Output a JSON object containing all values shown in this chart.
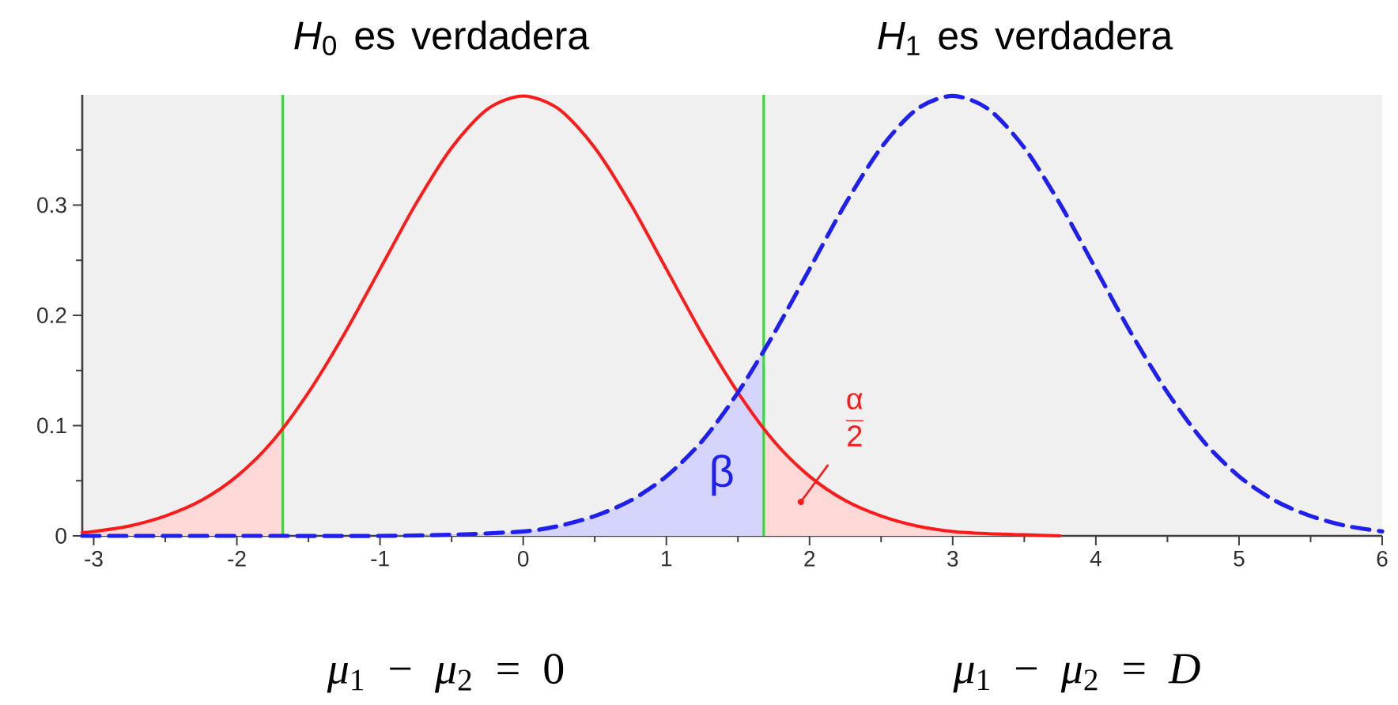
{
  "chart_data": {
    "type": "line",
    "xlim": [
      -3.08,
      6
    ],
    "ylim": [
      0,
      0.4
    ],
    "xticks": [
      -3,
      {
        "value": -2.5,
        "label": null
      },
      -2,
      {
        "value": -1.5,
        "label": null
      },
      -1,
      {
        "value": -0.5,
        "label": null
      },
      0,
      {
        "value": 0.5,
        "label": null
      },
      1,
      {
        "value": 1.5,
        "label": null
      },
      2,
      {
        "value": 2.5,
        "label": null
      },
      3,
      {
        "value": 3.5,
        "label": null
      },
      4,
      {
        "value": 4.5,
        "label": null
      },
      5,
      {
        "value": 5.5,
        "label": null
      },
      6
    ],
    "yticks": [
      0,
      {
        "value": 0.05,
        "label": null
      },
      0.1,
      {
        "value": 0.15,
        "label": null
      },
      0.2,
      {
        "value": 0.25,
        "label": null
      },
      0.3,
      {
        "value": 0.35,
        "label": null
      }
    ],
    "series": [
      {
        "type": "area",
        "color": "#ffd8d8",
        "x": [
          -3.08,
          -3,
          -2.75,
          -2.5,
          -2.25,
          -2,
          -1.75,
          -1.68
        ],
        "values": [
          0.003,
          0.004,
          0.009,
          0.018,
          0.032,
          0.054,
          0.086,
          0.097
        ]
      },
      {
        "type": "area",
        "name": "\\frac{\\text{α}}{\\text{2}}",
        "color": "#ffd8d8",
        "x": [
          1.68,
          1.75,
          2,
          2.25,
          2.5,
          2.75,
          3,
          3.25,
          3.5,
          3.75
        ],
        "values": [
          0.097,
          0.086,
          0.054,
          0.032,
          0.018,
          0.009,
          0.004,
          0.002,
          0.001,
          0
        ]
      },
      {
        "type": "area",
        "name": "β",
        "color": "#d4d4fc",
        "x": [
          -3.08,
          -1,
          -0.5,
          0,
          0.25,
          0.5,
          0.75,
          1,
          1.25,
          1.5,
          1.68
        ],
        "values": [
          0,
          0,
          0.001,
          0.004,
          0.009,
          0.018,
          0.032,
          0.054,
          0.086,
          0.13,
          0.168
        ]
      },
      {
        "color": "#ff1a1a",
        "line_style": "solid",
        "x": [
          -3.08,
          -3,
          -2.75,
          -2.5,
          -2.25,
          -2,
          -1.75,
          -1.5,
          -1.25,
          -1,
          -0.75,
          -0.5,
          -0.25,
          0,
          0.25,
          0.5,
          0.75,
          1,
          1.25,
          1.5,
          1.75,
          2,
          2.25,
          2.5,
          2.75,
          3,
          3.25,
          3.5,
          3.75
        ],
        "values": [
          0.003,
          0.004,
          0.009,
          0.018,
          0.032,
          0.054,
          0.086,
          0.13,
          0.183,
          0.242,
          0.301,
          0.352,
          0.387,
          0.399,
          0.387,
          0.352,
          0.301,
          0.242,
          0.183,
          0.13,
          0.086,
          0.054,
          0.032,
          0.018,
          0.009,
          0.004,
          0.002,
          0.001,
          0
        ]
      },
      {
        "color": "#1f1fef",
        "line_style": "dashed",
        "x": [
          -3.08,
          -2,
          -1,
          -0.5,
          0,
          0.25,
          0.5,
          0.75,
          1,
          1.25,
          1.5,
          1.75,
          2,
          2.25,
          2.5,
          2.75,
          3,
          3.25,
          3.5,
          3.75,
          4,
          4.25,
          4.5,
          4.75,
          5,
          5.25,
          5.5,
          5.75,
          6
        ],
        "values": [
          0,
          0,
          0,
          0.001,
          0.004,
          0.009,
          0.018,
          0.032,
          0.054,
          0.086,
          0.13,
          0.183,
          0.242,
          0.301,
          0.352,
          0.387,
          0.399,
          0.387,
          0.352,
          0.301,
          0.242,
          0.183,
          0.13,
          0.086,
          0.054,
          0.032,
          0.018,
          0.009,
          0.004
        ]
      }
    ],
    "ref_lines": [
      {
        "axis": "x",
        "value": -1.68,
        "color": "#33dd33"
      },
      {
        "axis": "x",
        "value": 1.68,
        "color": "#33dd33"
      }
    ],
    "annotations": [
      "*H*$_{0}$ es verdadera",
      "*H*$_{1}$ es verdadera",
      "*μ*$_{1}$ − *μ*$_{2}$ = 0",
      "*μ*$_{1}$ − *μ*$_{2}$ = *D*"
    ]
  }
}
